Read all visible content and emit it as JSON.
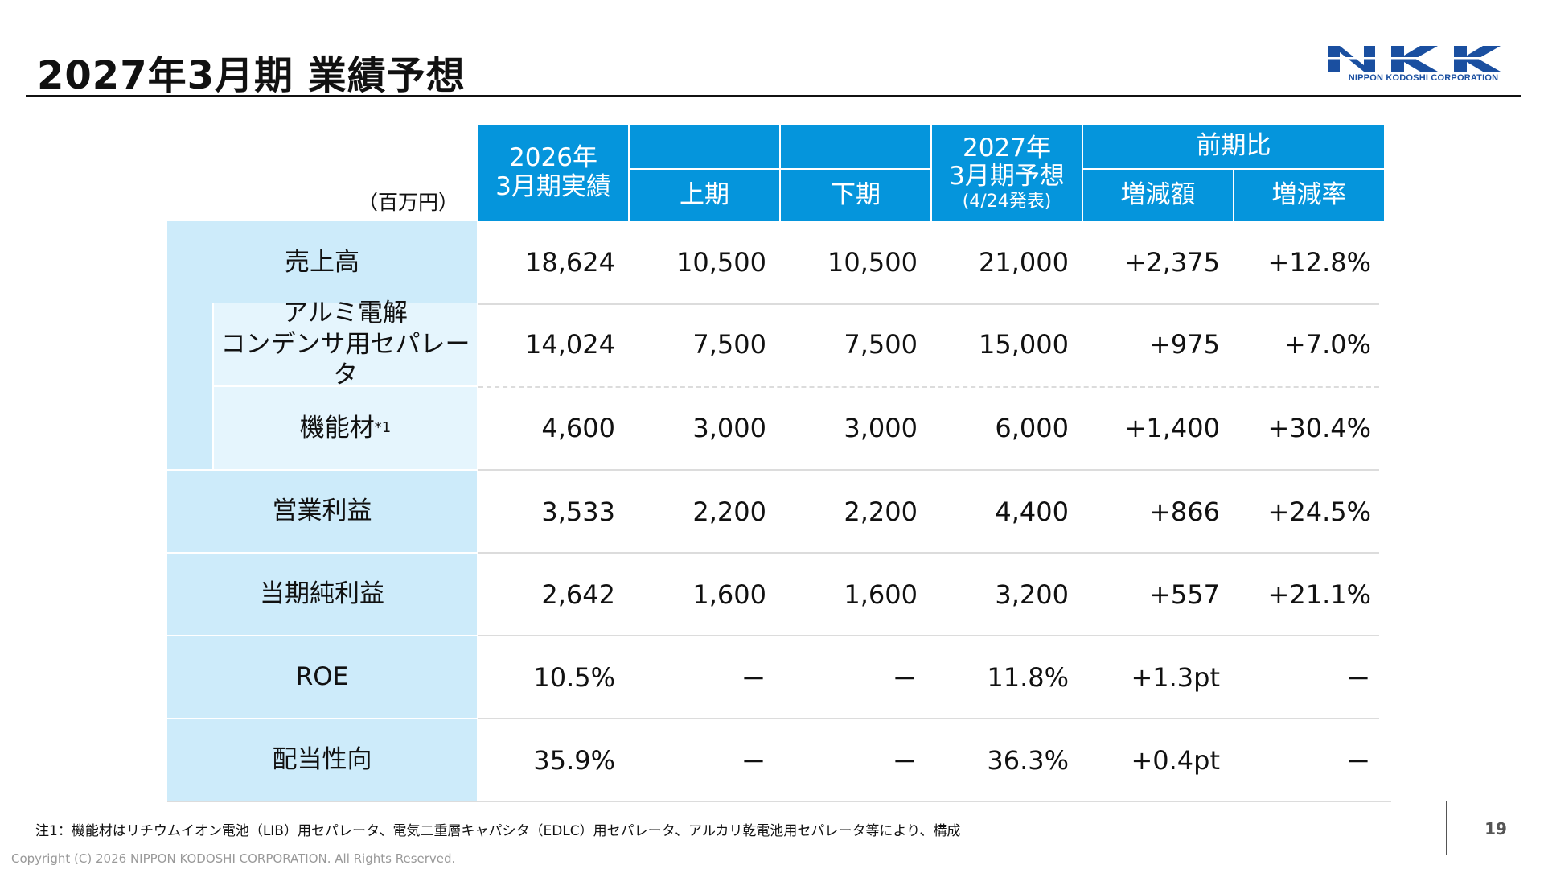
{
  "title": "2027年3月期 業績予想",
  "logo": {
    "mark": "NKK",
    "caption": "NIPPON KODOSHI CORPORATION",
    "color": "#1a4fa0"
  },
  "unit": "（百万円）",
  "header": {
    "actual_l1": "2026年",
    "actual_l2": "3月期実績",
    "h1": "上期",
    "h2": "下期",
    "forecast_l1": "2027年",
    "forecast_l2": "3月期予想",
    "forecast_l3": "(4/24発表)",
    "compare": "前期比",
    "diff": "増減額",
    "rate": "増減率"
  },
  "rows": [
    {
      "label": "売上高",
      "actual": "18,624",
      "h1": "10,500",
      "h2": "10,500",
      "forecast": "21,000",
      "diff": "+2,375",
      "rate": "+12.8%"
    },
    {
      "label_l1": "アルミ電解",
      "label_l2": "コンデンサ用セパレータ",
      "actual": "14,024",
      "h1": "7,500",
      "h2": "7,500",
      "forecast": "15,000",
      "diff": "+975",
      "rate": "+7.0%"
    },
    {
      "label": "機能材",
      "note": "*1",
      "actual": "4,600",
      "h1": "3,000",
      "h2": "3,000",
      "forecast": "6,000",
      "diff": "+1,400",
      "rate": "+30.4%"
    },
    {
      "label": "営業利益",
      "actual": "3,533",
      "h1": "2,200",
      "h2": "2,200",
      "forecast": "4,400",
      "diff": "+866",
      "rate": "+24.5%"
    },
    {
      "label": "当期純利益",
      "actual": "2,642",
      "h1": "1,600",
      "h2": "1,600",
      "forecast": "3,200",
      "diff": "+557",
      "rate": "+21.1%"
    },
    {
      "label": "ROE",
      "actual": "10.5%",
      "h1": "－",
      "h2": "－",
      "forecast": "11.8%",
      "diff": "+1.3pt",
      "rate": "－"
    },
    {
      "label": "配当性向",
      "actual": "35.9%",
      "h1": "－",
      "h2": "－",
      "forecast": "36.3%",
      "diff": "+0.4pt",
      "rate": "－"
    }
  ],
  "footnote": "注1：機能材はリチウムイオン電池（LIB）用セパレータ、電気二重層キャパシタ（EDLC）用セパレータ、アルカリ乾電池用セパレータ等により、構成",
  "copyright": "Copyright (C) 2026 NIPPON KODOSHI CORPORATION. All Rights Reserved.",
  "page_number": "19",
  "colors": {
    "header_blue": "#0595dc",
    "label_blue": "#cdebfa",
    "sub_label_blue": "#e5f5fd"
  }
}
